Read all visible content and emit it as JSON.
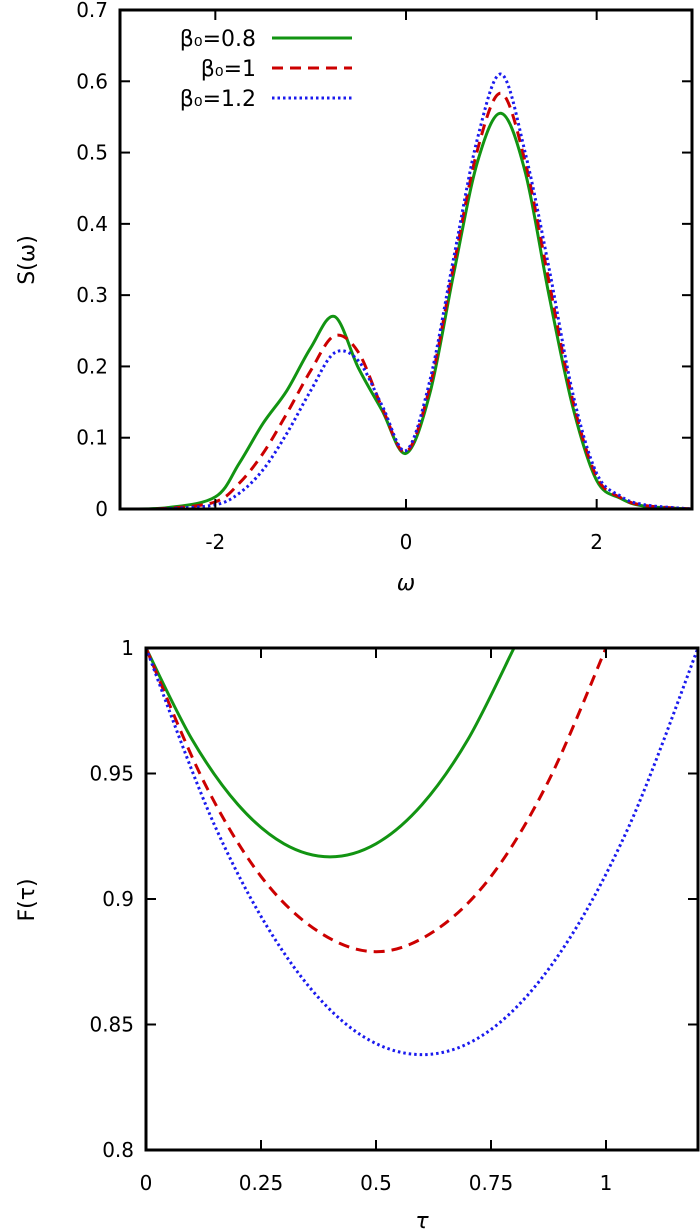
{
  "chart_data": [
    {
      "type": "line",
      "xlabel": "ω",
      "ylabel": "S(ω)",
      "xlim": [
        -3,
        3
      ],
      "ylim": [
        0,
        0.7
      ],
      "xticks": [
        -2,
        0,
        2
      ],
      "xtick_labels": [
        "-2",
        "0",
        "2"
      ],
      "yticks": [
        0,
        0.1,
        0.2,
        0.3,
        0.4,
        0.5,
        0.6,
        0.7
      ],
      "ytick_labels": [
        "0",
        "0.1",
        "0.2",
        "0.3",
        "0.4",
        "0.5",
        "0.6",
        "0.7"
      ],
      "grid": false,
      "legend_placement": "top-left",
      "x": [
        -3,
        -2.5,
        -2,
        -1.75,
        -1.5,
        -1.25,
        -1,
        -0.75,
        -0.5,
        -0.25,
        0,
        0.25,
        0.5,
        0.75,
        1,
        1.25,
        1.5,
        1.75,
        2,
        2.25,
        2.5,
        3
      ],
      "series": [
        {
          "name": "β0=0.8",
          "legend_label": "β₀=0.8",
          "color": "#129412",
          "style": "solid",
          "values": [
            0,
            0.002,
            0.017,
            0.064,
            0.12,
            0.166,
            0.226,
            0.27,
            0.198,
            0.138,
            0.078,
            0.162,
            0.33,
            0.487,
            0.555,
            0.473,
            0.3,
            0.143,
            0.04,
            0.015,
            0.004,
            0
          ]
        },
        {
          "name": "β0=1",
          "legend_label": "β₀=1",
          "color": "#cc0000",
          "style": "dashed",
          "values": [
            0,
            0.001,
            0.01,
            0.036,
            0.078,
            0.134,
            0.194,
            0.243,
            0.22,
            0.142,
            0.08,
            0.171,
            0.341,
            0.504,
            0.583,
            0.487,
            0.319,
            0.152,
            0.045,
            0.016,
            0.005,
            0
          ]
        },
        {
          "name": "β0=1.2",
          "legend_label": "β₀=1.2",
          "color": "#1a1aee",
          "style": "dotted",
          "values": [
            0,
            0.0005,
            0.006,
            0.022,
            0.055,
            0.106,
            0.166,
            0.219,
            0.208,
            0.145,
            0.082,
            0.18,
            0.352,
            0.52,
            0.61,
            0.5,
            0.338,
            0.162,
            0.05,
            0.018,
            0.006,
            0
          ]
        }
      ]
    },
    {
      "type": "line",
      "xlabel": "τ",
      "ylabel": "F(τ)",
      "xlim": [
        0,
        1.2
      ],
      "ylim": [
        0.8,
        1
      ],
      "xticks": [
        0,
        0.25,
        0.5,
        0.75,
        1
      ],
      "xtick_labels": [
        "0",
        "0.25",
        "0.5",
        "0.75",
        "1"
      ],
      "yticks": [
        0.8,
        0.85,
        0.9,
        0.95,
        1
      ],
      "ytick_labels": [
        "0.8",
        "0.85",
        "0.9",
        "0.95",
        "1"
      ],
      "grid": false,
      "series": [
        {
          "name": "β0=0.8",
          "color": "#129412",
          "style": "solid",
          "x": [
            0,
            0.1,
            0.2,
            0.3,
            0.4,
            0.5,
            0.6,
            0.7,
            0.8
          ],
          "values": [
            1,
            0.9636,
            0.9376,
            0.922,
            0.9168,
            0.922,
            0.9376,
            0.9636,
            1
          ]
        },
        {
          "name": "β0=1",
          "color": "#cc0000",
          "style": "dashed",
          "x": [
            0,
            0.125,
            0.25,
            0.375,
            0.5,
            0.625,
            0.75,
            0.875,
            1
          ],
          "values": [
            1,
            0.947,
            0.909,
            0.887,
            0.879,
            0.887,
            0.909,
            0.947,
            1
          ]
        },
        {
          "name": "β0=1.2",
          "color": "#1a1aee",
          "style": "dotted",
          "x": [
            0,
            0.15,
            0.3,
            0.45,
            0.6,
            0.75,
            0.9,
            1.05,
            1.2
          ],
          "values": [
            1,
            0.929,
            0.8785,
            0.848,
            0.838,
            0.848,
            0.8785,
            0.929,
            1
          ]
        }
      ]
    }
  ]
}
